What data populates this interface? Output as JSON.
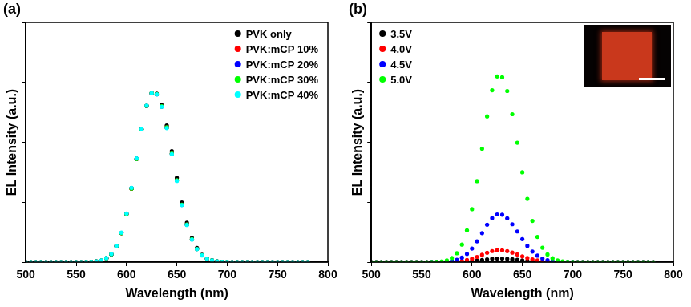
{
  "chart_data": [
    {
      "panel": "(a)",
      "type": "scatter",
      "marker": "circle",
      "x_label": "Wavelength (nm)",
      "y_label": "EL Intensity (a.u.)",
      "x": [
        500,
        505,
        510,
        515,
        520,
        525,
        530,
        535,
        540,
        545,
        550,
        555,
        560,
        565,
        570,
        575,
        580,
        585,
        590,
        595,
        600,
        605,
        610,
        615,
        620,
        625,
        630,
        635,
        640,
        645,
        650,
        655,
        660,
        665,
        670,
        675,
        680,
        685,
        690,
        695,
        700,
        705,
        710,
        715,
        720,
        725,
        730,
        735,
        740,
        745,
        750,
        755,
        760,
        765,
        770,
        775,
        780
      ],
      "series": [
        {
          "name": "PVK only",
          "color": "#000000",
          "values": [
            0,
            0,
            0,
            0,
            0,
            0,
            0,
            0,
            0,
            0,
            0,
            0,
            0.0003,
            0.001,
            0.0026,
            0.0066,
            0.016,
            0.033,
            0.067,
            0.121,
            0.201,
            0.307,
            0.431,
            0.554,
            0.652,
            0.705,
            0.703,
            0.655,
            0.57,
            0.463,
            0.352,
            0.249,
            0.164,
            0.101,
            0.059,
            0.031,
            0.015,
            0.008,
            0.003,
            0.001,
            0.0004,
            0,
            0,
            0,
            0,
            0,
            0,
            0,
            0,
            0,
            0,
            0,
            0,
            0,
            0,
            0,
            0
          ]
        },
        {
          "name": "PVK:mCP 10%",
          "color": "#ff0000",
          "values": [
            0,
            0,
            0,
            0,
            0,
            0,
            0,
            0,
            0,
            0,
            0,
            0,
            0.0003,
            0.001,
            0.0026,
            0.0066,
            0.016,
            0.033,
            0.067,
            0.121,
            0.201,
            0.307,
            0.431,
            0.554,
            0.652,
            0.705,
            0.701,
            0.65,
            0.562,
            0.453,
            0.342,
            0.24,
            0.157,
            0.096,
            0.055,
            0.029,
            0.014,
            0.007,
            0.003,
            0.001,
            0.0004,
            0,
            0,
            0,
            0,
            0,
            0,
            0,
            0,
            0,
            0,
            0,
            0,
            0,
            0,
            0,
            0
          ]
        },
        {
          "name": "PVK:mCP 20%",
          "color": "#0000ff",
          "values": [
            0,
            0,
            0,
            0,
            0,
            0,
            0,
            0,
            0,
            0,
            0,
            0,
            0.0003,
            0.001,
            0.0026,
            0.0066,
            0.016,
            0.033,
            0.067,
            0.122,
            0.202,
            0.309,
            0.432,
            0.555,
            0.652,
            0.704,
            0.7,
            0.649,
            0.561,
            0.452,
            0.341,
            0.239,
            0.156,
            0.095,
            0.055,
            0.029,
            0.014,
            0.007,
            0.003,
            0.001,
            0.0004,
            0,
            0,
            0,
            0,
            0,
            0,
            0,
            0,
            0,
            0,
            0,
            0,
            0,
            0,
            0,
            0
          ]
        },
        {
          "name": "PVK:mCP 30%",
          "color": "#00ff00",
          "values": [
            0,
            0,
            0,
            0,
            0,
            0,
            0,
            0,
            0,
            0,
            0,
            0,
            0.0003,
            0.001,
            0.0026,
            0.0066,
            0.016,
            0.033,
            0.067,
            0.121,
            0.201,
            0.307,
            0.431,
            0.554,
            0.652,
            0.705,
            0.701,
            0.65,
            0.562,
            0.453,
            0.342,
            0.24,
            0.157,
            0.096,
            0.055,
            0.029,
            0.014,
            0.007,
            0.003,
            0.001,
            0.0004,
            0,
            0,
            0,
            0,
            0,
            0,
            0,
            0,
            0,
            0,
            0,
            0,
            0,
            0,
            0,
            0
          ]
        },
        {
          "name": "PVK:mCP 40%",
          "color": "#00ffff",
          "values": [
            0,
            0,
            0,
            0,
            0,
            0,
            0,
            0,
            0,
            0,
            0,
            0,
            0.0003,
            0.001,
            0.0027,
            0.0068,
            0.017,
            0.034,
            0.068,
            0.123,
            0.203,
            0.31,
            0.433,
            0.555,
            0.653,
            0.705,
            0.7,
            0.648,
            0.559,
            0.45,
            0.339,
            0.238,
            0.155,
            0.094,
            0.054,
            0.028,
            0.014,
            0.007,
            0.003,
            0.001,
            0.0004,
            0,
            0,
            0,
            0,
            0,
            0,
            0,
            0,
            0,
            0,
            0,
            0,
            0,
            0,
            0,
            0
          ]
        }
      ],
      "xlim": [
        500,
        800
      ],
      "xticks": [
        500,
        550,
        600,
        650,
        700,
        750,
        800
      ],
      "ylim": [
        0,
        1
      ],
      "yticks": [
        0,
        0.25,
        0.5,
        0.75,
        1
      ],
      "tick_labels": "x",
      "grid": false,
      "legend": "upper right"
    },
    {
      "panel": "(b)",
      "type": "scatter",
      "marker": "circle",
      "x_label": "Wavelength (nm)",
      "y_label": "EL Intensity (a.u.)",
      "x": [
        500,
        505,
        510,
        515,
        520,
        525,
        530,
        535,
        540,
        545,
        550,
        555,
        560,
        565,
        570,
        575,
        580,
        585,
        590,
        595,
        600,
        605,
        610,
        615,
        620,
        625,
        630,
        635,
        640,
        645,
        650,
        655,
        660,
        665,
        670,
        675,
        680,
        685,
        690,
        695,
        700,
        705,
        710,
        715,
        720,
        725,
        730,
        735,
        740,
        745,
        750,
        755,
        760,
        765,
        770,
        775,
        780
      ],
      "series": [
        {
          "name": "3.5V",
          "color": "#000000",
          "values": [
            0,
            0,
            0,
            0,
            0,
            0,
            0,
            0,
            0,
            0,
            0,
            0,
            0,
            0,
            0,
            0,
            0,
            0,
            0.0014,
            0.0026,
            0.0042,
            0.0065,
            0.0091,
            0.0117,
            0.0138,
            0.0149,
            0.0148,
            0.0137,
            0.0119,
            0.0096,
            0.0072,
            0.0051,
            0.0033,
            0.002,
            0.0012,
            0,
            0,
            0,
            0,
            0,
            0,
            0,
            0,
            0,
            0,
            0,
            0,
            0,
            0,
            0,
            0,
            0,
            0,
            0,
            0,
            0,
            0
          ]
        },
        {
          "name": "4.0V",
          "color": "#ff0000",
          "values": [
            0,
            0,
            0,
            0,
            0,
            0,
            0,
            0,
            0,
            0,
            0,
            0,
            0,
            0,
            0,
            0,
            0.0011,
            0.0024,
            0.0047,
            0.0085,
            0.0142,
            0.0217,
            0.0304,
            0.039,
            0.046,
            0.0497,
            0.0494,
            0.0458,
            0.0396,
            0.0319,
            0.024,
            0.0169,
            0.011,
            0.0068,
            0.0039,
            0.0021,
            0.001,
            0,
            0,
            0,
            0,
            0,
            0,
            0,
            0,
            0,
            0,
            0,
            0,
            0,
            0,
            0,
            0,
            0,
            0,
            0,
            0
          ]
        },
        {
          "name": "4.5V",
          "color": "#0000ff",
          "values": [
            0,
            0,
            0,
            0,
            0,
            0,
            0,
            0,
            0,
            0,
            0,
            0,
            0.0001,
            0.0003,
            0.0007,
            0.0019,
            0.0044,
            0.0094,
            0.0188,
            0.034,
            0.0566,
            0.0866,
            0.121,
            0.156,
            0.184,
            0.199,
            0.198,
            0.183,
            0.158,
            0.128,
            0.096,
            0.068,
            0.044,
            0.027,
            0.015,
            0.008,
            0.004,
            0.0019,
            0.0008,
            0.0003,
            0.0001,
            0,
            0,
            0,
            0,
            0,
            0,
            0,
            0,
            0,
            0,
            0,
            0,
            0,
            0,
            0,
            0
          ]
        },
        {
          "name": "5.0V",
          "color": "#00ff00",
          "values": [
            0,
            0,
            0,
            0,
            0,
            0,
            0,
            0,
            0,
            0,
            0,
            0,
            0.0003,
            0.001,
            0.0028,
            0.0073,
            0.017,
            0.037,
            0.073,
            0.133,
            0.221,
            0.338,
            0.473,
            0.608,
            0.717,
            0.775,
            0.771,
            0.714,
            0.617,
            0.498,
            0.375,
            0.264,
            0.172,
            0.105,
            0.06,
            0.032,
            0.016,
            0.0074,
            0.0032,
            0.0013,
            0.0005,
            0,
            0,
            0,
            0,
            0,
            0,
            0,
            0,
            0,
            0,
            0,
            0,
            0,
            0,
            0,
            0
          ]
        }
      ],
      "xlim": [
        500,
        800
      ],
      "xticks": [
        500,
        550,
        600,
        650,
        700,
        750,
        800
      ],
      "ylim": [
        0,
        1
      ],
      "yticks": [
        0,
        0.25,
        0.5,
        0.75,
        1
      ],
      "tick_labels": "x",
      "grid": false,
      "legend": "upper left"
    }
  ]
}
